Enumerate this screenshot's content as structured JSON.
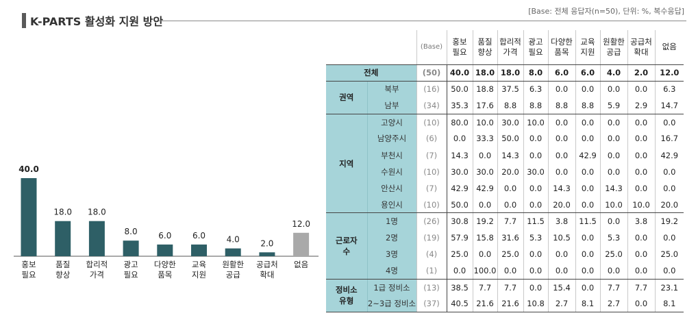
{
  "title": "K-PARTS 활성화 지원 방안",
  "base_note": "[Base: 전체 응답자(n=50), 단위: %, 복수응답]",
  "colors": {
    "bar": "#2e5f66",
    "bar_none": "#a9a9a9",
    "header_fill": "#a6d4d9"
  },
  "chart_data": {
    "type": "bar",
    "categories": [
      [
        "홍보",
        "필요"
      ],
      [
        "품질",
        "향상"
      ],
      [
        "합리적",
        "가격"
      ],
      [
        "광고",
        "필요"
      ],
      [
        "다양한",
        "품목"
      ],
      [
        "교육",
        "지원"
      ],
      [
        "원활한",
        "공급"
      ],
      [
        "공급처",
        "확대"
      ],
      [
        "없음"
      ]
    ],
    "values": [
      40.0,
      18.0,
      18.0,
      8.0,
      6.0,
      6.0,
      4.0,
      2.0,
      12.0
    ],
    "value_labels": [
      "40.0",
      "18.0",
      "18.0",
      "8.0",
      "6.0",
      "6.0",
      "4.0",
      "2.0",
      "12.0"
    ],
    "highlight_last_gray": true,
    "xlabel": "",
    "ylabel": "",
    "ylim": [
      0,
      40
    ]
  },
  "table": {
    "base_header": "(Base)",
    "columns": [
      [
        "홍보",
        "필요"
      ],
      [
        "품질",
        "향상"
      ],
      [
        "합리적",
        "가격"
      ],
      [
        "광고",
        "필요"
      ],
      [
        "다양한",
        "품목"
      ],
      [
        "교육",
        "지원"
      ],
      [
        "원활한",
        "공급"
      ],
      [
        "공급처",
        "확대"
      ],
      [
        "없음"
      ]
    ],
    "total": {
      "label": "전체",
      "base": "(50)",
      "values": [
        "40.0",
        "18.0",
        "18.0",
        "8.0",
        "6.0",
        "6.0",
        "4.0",
        "2.0",
        "12.0"
      ]
    },
    "groups": [
      {
        "label": "권역",
        "rows": [
          {
            "label": "북부",
            "base": "(16)",
            "values": [
              "50.0",
              "18.8",
              "37.5",
              "6.3",
              "0.0",
              "0.0",
              "0.0",
              "0.0",
              "6.3"
            ]
          },
          {
            "label": "남부",
            "base": "(34)",
            "values": [
              "35.3",
              "17.6",
              "8.8",
              "8.8",
              "8.8",
              "8.8",
              "5.9",
              "2.9",
              "14.7"
            ]
          }
        ]
      },
      {
        "label": "지역",
        "rows": [
          {
            "label": "고양시",
            "base": "(10)",
            "values": [
              "80.0",
              "10.0",
              "30.0",
              "10.0",
              "0.0",
              "0.0",
              "0.0",
              "0.0",
              "0.0"
            ]
          },
          {
            "label": "남양주시",
            "base": "(6)",
            "values": [
              "0.0",
              "33.3",
              "50.0",
              "0.0",
              "0.0",
              "0.0",
              "0.0",
              "0.0",
              "16.7"
            ]
          },
          {
            "label": "부천시",
            "base": "(7)",
            "values": [
              "14.3",
              "0.0",
              "14.3",
              "0.0",
              "0.0",
              "42.9",
              "0.0",
              "0.0",
              "42.9"
            ]
          },
          {
            "label": "수원시",
            "base": "(10)",
            "values": [
              "30.0",
              "30.0",
              "20.0",
              "30.0",
              "0.0",
              "0.0",
              "0.0",
              "0.0",
              "0.0"
            ]
          },
          {
            "label": "안산시",
            "base": "(7)",
            "values": [
              "42.9",
              "42.9",
              "0.0",
              "0.0",
              "14.3",
              "0.0",
              "14.3",
              "0.0",
              "0.0"
            ]
          },
          {
            "label": "용인시",
            "base": "(10)",
            "values": [
              "50.0",
              "0.0",
              "0.0",
              "0.0",
              "20.0",
              "0.0",
              "10.0",
              "10.0",
              "20.0"
            ]
          }
        ]
      },
      {
        "label": "근로자 수",
        "rows": [
          {
            "label": "1명",
            "base": "(26)",
            "values": [
              "30.8",
              "19.2",
              "7.7",
              "11.5",
              "3.8",
              "11.5",
              "0.0",
              "3.8",
              "19.2"
            ]
          },
          {
            "label": "2명",
            "base": "(19)",
            "values": [
              "57.9",
              "15.8",
              "31.6",
              "5.3",
              "10.5",
              "0.0",
              "5.3",
              "0.0",
              "0.0"
            ]
          },
          {
            "label": "3명",
            "base": "(4)",
            "values": [
              "25.0",
              "0.0",
              "25.0",
              "0.0",
              "0.0",
              "0.0",
              "25.0",
              "0.0",
              "25.0"
            ]
          },
          {
            "label": "4명",
            "base": "(1)",
            "values": [
              "0.0",
              "100.0",
              "0.0",
              "0.0",
              "0.0",
              "0.0",
              "0.0",
              "0.0",
              "0.0"
            ]
          }
        ]
      },
      {
        "label": "정비소 유형",
        "rows": [
          {
            "label": "1급 정비소",
            "base": "(13)",
            "values": [
              "38.5",
              "7.7",
              "7.7",
              "0.0",
              "15.4",
              "0.0",
              "7.7",
              "7.7",
              "23.1"
            ]
          },
          {
            "label": "2~3급 정비소",
            "base": "(37)",
            "values": [
              "40.5",
              "21.6",
              "21.6",
              "10.8",
              "2.7",
              "8.1",
              "2.7",
              "0.0",
              "8.1"
            ]
          }
        ]
      }
    ]
  }
}
